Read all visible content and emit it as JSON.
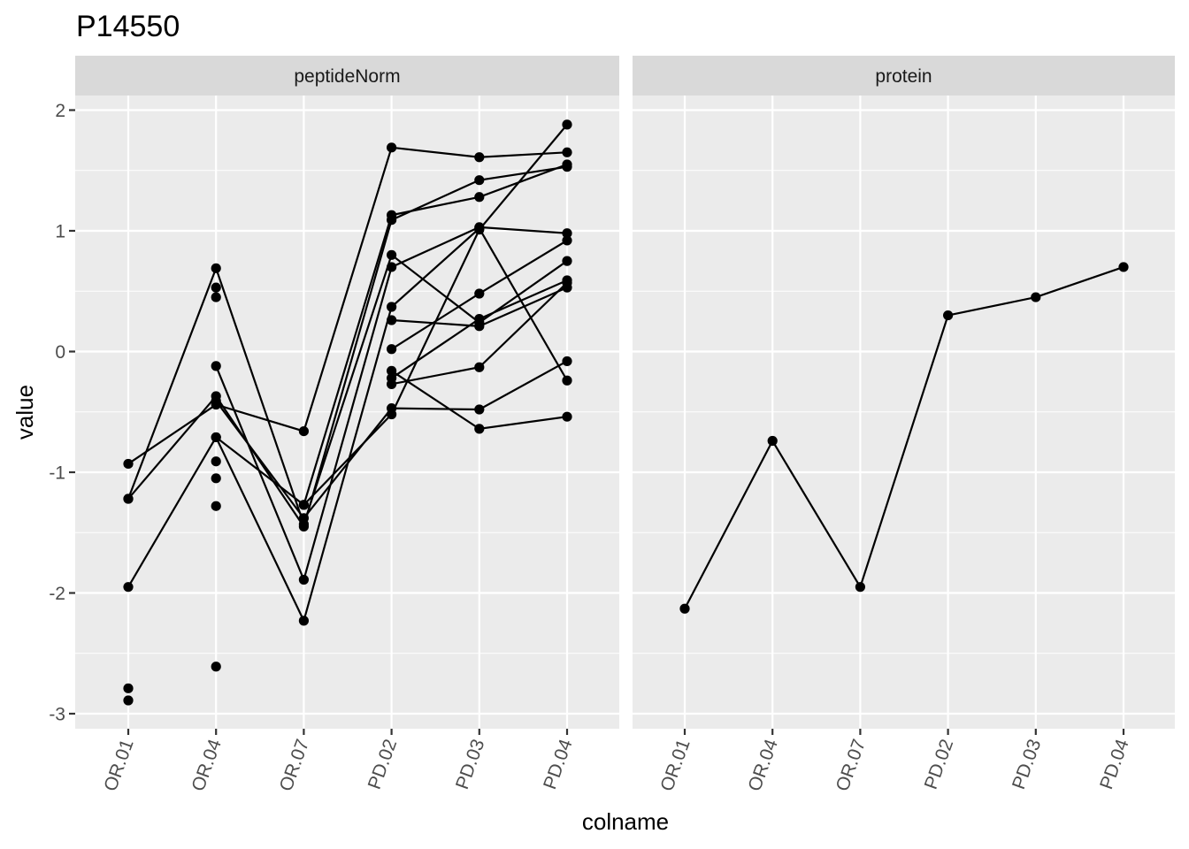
{
  "chart_data": {
    "type": "line",
    "title": "P14550",
    "xlabel": "colname",
    "ylabel": "value",
    "categories": [
      "OR.01",
      "OR.04",
      "OR.07",
      "PD.02",
      "PD.03",
      "PD.04"
    ],
    "y_ticks": [
      "-3",
      "-2",
      "-1",
      "0",
      "1",
      "2"
    ],
    "ylim": [
      -3.1,
      2.1
    ],
    "grid": true,
    "panels": [
      {
        "strip": "peptideNorm",
        "series": [
          {
            "values": [
              -1.22,
              0.69,
              -1.43,
              0.8,
              0.24,
              0.75
            ]
          },
          {
            "values": [
              -1.22,
              -0.37,
              -1.45,
              1.09,
              1.42,
              1.53
            ]
          },
          {
            "values": [
              -1.95,
              -0.71,
              -1.27,
              1.13,
              1.28,
              1.55
            ]
          },
          {
            "values": [
              -0.93,
              -0.44,
              -0.66,
              1.69,
              1.61,
              1.65
            ]
          },
          {
            "values": [
              null,
              -0.12,
              -1.89,
              0.7,
              1.03,
              0.98
            ]
          },
          {
            "values": [
              null,
              -0.71,
              -2.23,
              0.37,
              1.02,
              -0.24
            ]
          },
          {
            "values": [
              null,
              -0.41,
              -1.38,
              -0.47,
              -0.48,
              -0.08
            ]
          },
          {
            "values": [
              null,
              null,
              -1.27,
              -0.52,
              1.01,
              1.88
            ]
          },
          {
            "values": [
              null,
              null,
              null,
              0.26,
              0.21,
              0.53
            ]
          },
          {
            "values": [
              null,
              null,
              null,
              0.02,
              0.48,
              0.92
            ]
          },
          {
            "values": [
              null,
              null,
              null,
              -0.27,
              -0.13,
              0.57
            ]
          },
          {
            "values": [
              null,
              null,
              null,
              -0.16,
              -0.64,
              -0.54
            ]
          },
          {
            "values": [
              null,
              null,
              null,
              -0.22,
              0.27,
              0.59
            ]
          }
        ],
        "extra_points": [
          {
            "x": "OR.01",
            "y": -2.79
          },
          {
            "x": "OR.01",
            "y": -2.89
          },
          {
            "x": "OR.04",
            "y": 0.53
          },
          {
            "x": "OR.04",
            "y": 0.45
          },
          {
            "x": "OR.04",
            "y": -0.91
          },
          {
            "x": "OR.04",
            "y": -1.05
          },
          {
            "x": "OR.04",
            "y": -1.28
          },
          {
            "x": "OR.04",
            "y": -2.61
          }
        ]
      },
      {
        "strip": "protein",
        "series": [
          {
            "values": [
              -2.13,
              -0.74,
              -1.95,
              0.3,
              0.45,
              0.7
            ]
          }
        ],
        "extra_points": []
      }
    ]
  }
}
